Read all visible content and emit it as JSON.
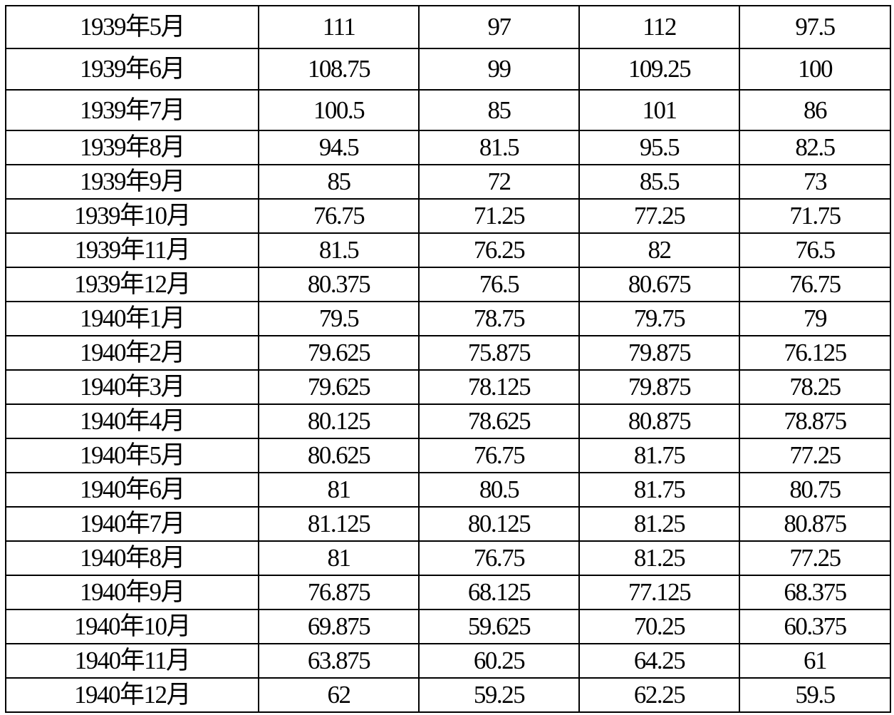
{
  "table": {
    "rows": [
      [
        "1939年5月",
        "111",
        "97",
        "112",
        "97.5"
      ],
      [
        "1939年6月",
        "108.75",
        "99",
        "109.25",
        "100"
      ],
      [
        "1939年7月",
        "100.5",
        "85",
        "101",
        "86"
      ],
      [
        "1939年8月",
        "94.5",
        "81.5",
        "95.5",
        "82.5"
      ],
      [
        "1939年9月",
        "85",
        "72",
        "85.5",
        "73"
      ],
      [
        "1939年10月",
        "76.75",
        "71.25",
        "77.25",
        "71.75"
      ],
      [
        "1939年11月",
        "81.5",
        "76.25",
        "82",
        "76.5"
      ],
      [
        "1939年12月",
        "80.375",
        "76.5",
        "80.675",
        "76.75"
      ],
      [
        "1940年1月",
        "79.5",
        "78.75",
        "79.75",
        "79"
      ],
      [
        "1940年2月",
        "79.625",
        "75.875",
        "79.875",
        "76.125"
      ],
      [
        "1940年3月",
        "79.625",
        "78.125",
        "79.875",
        "78.25"
      ],
      [
        "1940年4月",
        "80.125",
        "78.625",
        "80.875",
        "78.875"
      ],
      [
        "1940年5月",
        "80.625",
        "76.75",
        "81.75",
        "77.25"
      ],
      [
        "1940年6月",
        "81",
        "80.5",
        "81.75",
        "80.75"
      ],
      [
        "1940年7月",
        "81.125",
        "80.125",
        "81.25",
        "80.875"
      ],
      [
        "1940年8月",
        "81",
        "76.75",
        "81.25",
        "77.25"
      ],
      [
        "1940年9月",
        "76.875",
        "68.125",
        "77.125",
        "68.375"
      ],
      [
        "1940年10月",
        "69.875",
        "59.625",
        "70.25",
        "60.375"
      ],
      [
        "1940年11月",
        "63.875",
        "60.25",
        "64.25",
        "61"
      ],
      [
        "1940年12月",
        "62",
        "59.25",
        "62.25",
        "59.5"
      ]
    ]
  }
}
